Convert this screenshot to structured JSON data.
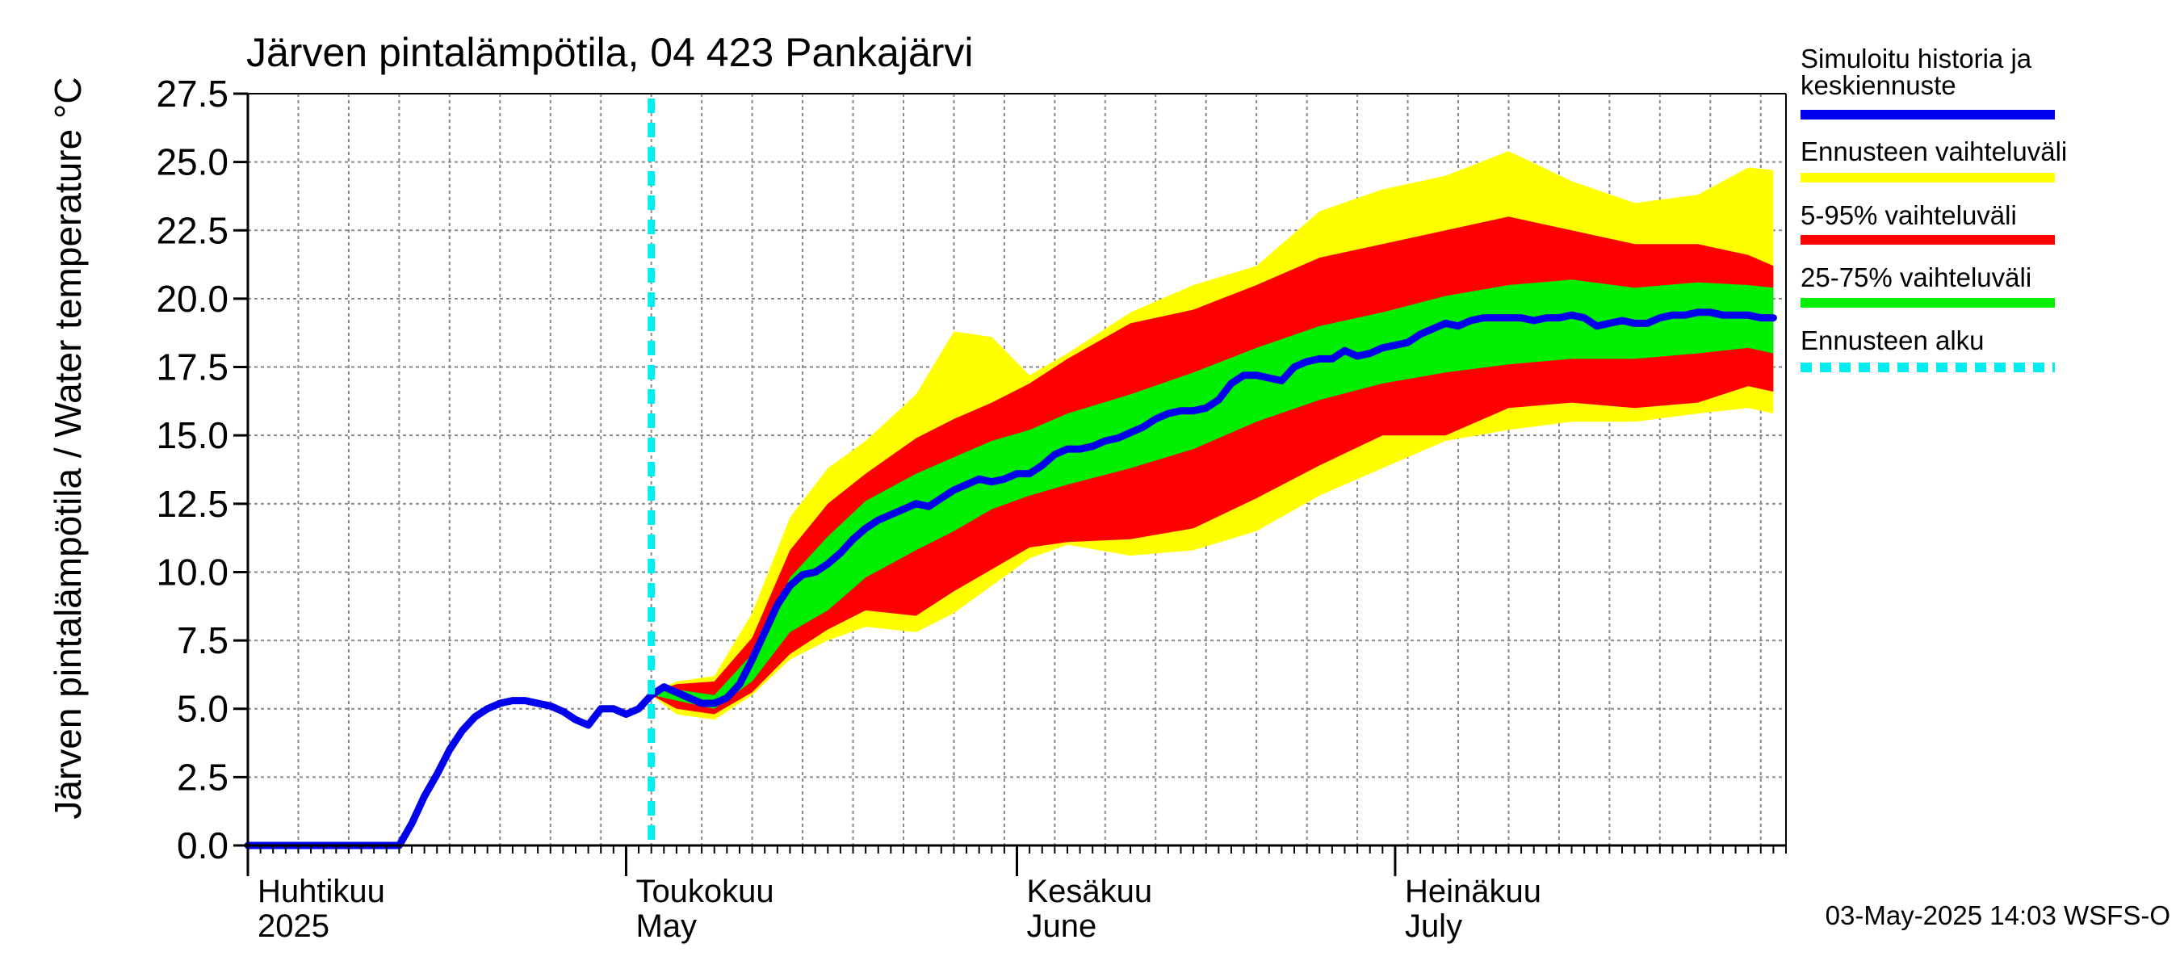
{
  "chart_data": {
    "type": "area",
    "title": "Järven pintalämpötila, 04 423 Pankajärvi",
    "ylabel": "Järven pintalämpötila / Water temperature °C",
    "xlabel": "",
    "ylim": [
      0,
      27.5
    ],
    "xlim": [
      "2025-04-01",
      "2025-08-01"
    ],
    "grid": true,
    "legend_position": "right",
    "y_ticks": [
      "0.0",
      "2.5",
      "5.0",
      "7.5",
      "10.0",
      "12.5",
      "15.0",
      "17.5",
      "20.0",
      "22.5",
      "25.0",
      "27.5"
    ],
    "month_labels": [
      {
        "fi": "Huhtikuu",
        "en": "2025",
        "date": "2025-04-01"
      },
      {
        "fi": "Toukokuu",
        "en": "May",
        "date": "2025-05-01"
      },
      {
        "fi": "Kesäkuu",
        "en": "June",
        "date": "2025-06-01"
      },
      {
        "fi": "Heinäkuu",
        "en": "July",
        "date": "2025-07-01"
      }
    ],
    "forecast_start": "2025-05-03",
    "footer": "03-May-2025 14:03 WSFS-O",
    "colors": {
      "history": "#0000ee",
      "full_range": "#ffff00",
      "p5_95": "#ff0000",
      "p25_75": "#00ee00",
      "forecast_start": "#00eeee"
    },
    "legend": [
      {
        "label_lines": [
          "Simuloitu historia ja",
          "keskiennuste"
        ],
        "color": "#0000ee",
        "style": "solid"
      },
      {
        "label_lines": [
          "Ennusteen vaihteluväli"
        ],
        "color": "#ffff00",
        "style": "solid"
      },
      {
        "label_lines": [
          "5-95% vaihteluväli"
        ],
        "color": "#ff0000",
        "style": "solid"
      },
      {
        "label_lines": [
          "25-75% vaihteluväli"
        ],
        "color": "#00ee00",
        "style": "solid"
      },
      {
        "label_lines": [
          "Ennusteen alku"
        ],
        "color": "#00eeee",
        "style": "dashed"
      }
    ],
    "series": [
      {
        "name": "Simuloitu historia ja keskiennuste",
        "points": [
          [
            "2025-04-01",
            0.0
          ],
          [
            "2025-04-05",
            0.0
          ],
          [
            "2025-04-10",
            0.0
          ],
          [
            "2025-04-13",
            0.0
          ],
          [
            "2025-04-14",
            0.8
          ],
          [
            "2025-04-15",
            1.8
          ],
          [
            "2025-04-16",
            2.6
          ],
          [
            "2025-04-17",
            3.5
          ],
          [
            "2025-04-18",
            4.2
          ],
          [
            "2025-04-19",
            4.7
          ],
          [
            "2025-04-20",
            5.0
          ],
          [
            "2025-04-21",
            5.2
          ],
          [
            "2025-04-22",
            5.3
          ],
          [
            "2025-04-23",
            5.3
          ],
          [
            "2025-04-24",
            5.2
          ],
          [
            "2025-04-25",
            5.1
          ],
          [
            "2025-04-26",
            4.9
          ],
          [
            "2025-04-27",
            4.6
          ],
          [
            "2025-04-28",
            4.4
          ],
          [
            "2025-04-29",
            5.0
          ],
          [
            "2025-04-30",
            5.0
          ],
          [
            "2025-05-01",
            4.8
          ],
          [
            "2025-05-02",
            5.0
          ],
          [
            "2025-05-03",
            5.5
          ],
          [
            "2025-05-04",
            5.8
          ],
          [
            "2025-05-05",
            5.6
          ],
          [
            "2025-05-06",
            5.4
          ],
          [
            "2025-05-07",
            5.2
          ],
          [
            "2025-05-08",
            5.2
          ],
          [
            "2025-05-09",
            5.4
          ],
          [
            "2025-05-10",
            5.9
          ],
          [
            "2025-05-11",
            6.8
          ],
          [
            "2025-05-12",
            7.8
          ],
          [
            "2025-05-13",
            8.8
          ],
          [
            "2025-05-14",
            9.5
          ],
          [
            "2025-05-15",
            9.9
          ],
          [
            "2025-05-16",
            10.0
          ],
          [
            "2025-05-17",
            10.3
          ],
          [
            "2025-05-18",
            10.7
          ],
          [
            "2025-05-19",
            11.2
          ],
          [
            "2025-05-20",
            11.6
          ],
          [
            "2025-05-21",
            11.9
          ],
          [
            "2025-05-22",
            12.1
          ],
          [
            "2025-05-23",
            12.3
          ],
          [
            "2025-05-24",
            12.5
          ],
          [
            "2025-05-25",
            12.4
          ],
          [
            "2025-05-26",
            12.7
          ],
          [
            "2025-05-27",
            13.0
          ],
          [
            "2025-05-28",
            13.2
          ],
          [
            "2025-05-29",
            13.4
          ],
          [
            "2025-05-30",
            13.3
          ],
          [
            "2025-05-31",
            13.4
          ],
          [
            "2025-06-01",
            13.6
          ],
          [
            "2025-06-02",
            13.6
          ],
          [
            "2025-06-03",
            13.9
          ],
          [
            "2025-06-04",
            14.3
          ],
          [
            "2025-06-05",
            14.5
          ],
          [
            "2025-06-06",
            14.5
          ],
          [
            "2025-06-07",
            14.6
          ],
          [
            "2025-06-08",
            14.8
          ],
          [
            "2025-06-09",
            14.9
          ],
          [
            "2025-06-10",
            15.1
          ],
          [
            "2025-06-11",
            15.3
          ],
          [
            "2025-06-12",
            15.6
          ],
          [
            "2025-06-13",
            15.8
          ],
          [
            "2025-06-14",
            15.9
          ],
          [
            "2025-06-15",
            15.9
          ],
          [
            "2025-06-16",
            16.0
          ],
          [
            "2025-06-17",
            16.3
          ],
          [
            "2025-06-18",
            16.9
          ],
          [
            "2025-06-19",
            17.2
          ],
          [
            "2025-06-20",
            17.2
          ],
          [
            "2025-06-21",
            17.1
          ],
          [
            "2025-06-22",
            17.0
          ],
          [
            "2025-06-23",
            17.5
          ],
          [
            "2025-06-24",
            17.7
          ],
          [
            "2025-06-25",
            17.8
          ],
          [
            "2025-06-26",
            17.8
          ],
          [
            "2025-06-27",
            18.1
          ],
          [
            "2025-06-28",
            17.9
          ],
          [
            "2025-06-29",
            18.0
          ],
          [
            "2025-06-30",
            18.2
          ],
          [
            "2025-07-01",
            18.3
          ],
          [
            "2025-07-02",
            18.4
          ],
          [
            "2025-07-03",
            18.7
          ],
          [
            "2025-07-04",
            18.9
          ],
          [
            "2025-07-05",
            19.1
          ],
          [
            "2025-07-06",
            19.0
          ],
          [
            "2025-07-07",
            19.2
          ],
          [
            "2025-07-08",
            19.3
          ],
          [
            "2025-07-09",
            19.3
          ],
          [
            "2025-07-10",
            19.3
          ],
          [
            "2025-07-11",
            19.3
          ],
          [
            "2025-07-12",
            19.2
          ],
          [
            "2025-07-13",
            19.3
          ],
          [
            "2025-07-14",
            19.3
          ],
          [
            "2025-07-15",
            19.4
          ],
          [
            "2025-07-16",
            19.3
          ],
          [
            "2025-07-17",
            19.0
          ],
          [
            "2025-07-18",
            19.1
          ],
          [
            "2025-07-19",
            19.2
          ],
          [
            "2025-07-20",
            19.1
          ],
          [
            "2025-07-21",
            19.1
          ],
          [
            "2025-07-22",
            19.3
          ],
          [
            "2025-07-23",
            19.4
          ],
          [
            "2025-07-24",
            19.4
          ],
          [
            "2025-07-25",
            19.5
          ],
          [
            "2025-07-26",
            19.5
          ],
          [
            "2025-07-27",
            19.4
          ],
          [
            "2025-07-28",
            19.4
          ],
          [
            "2025-07-29",
            19.4
          ],
          [
            "2025-07-30",
            19.3
          ],
          [
            "2025-07-31",
            19.3
          ]
        ]
      },
      {
        "name": "Ennusteen vaihteluväli",
        "band": [
          [
            "2025-05-03",
            5.5,
            5.6
          ],
          [
            "2025-05-05",
            4.8,
            6.0
          ],
          [
            "2025-05-08",
            4.6,
            6.2
          ],
          [
            "2025-05-11",
            5.5,
            8.5
          ],
          [
            "2025-05-14",
            6.8,
            12.0
          ],
          [
            "2025-05-17",
            7.5,
            13.8
          ],
          [
            "2025-05-20",
            8.0,
            14.8
          ],
          [
            "2025-05-24",
            7.8,
            16.5
          ],
          [
            "2025-05-27",
            8.5,
            18.8
          ],
          [
            "2025-05-30",
            9.5,
            18.6
          ],
          [
            "2025-06-02",
            10.5,
            17.2
          ],
          [
            "2025-06-05",
            11.0,
            18.0
          ],
          [
            "2025-06-10",
            10.6,
            19.5
          ],
          [
            "2025-06-15",
            10.8,
            20.5
          ],
          [
            "2025-06-20",
            11.5,
            21.2
          ],
          [
            "2025-06-25",
            12.8,
            23.2
          ],
          [
            "2025-06-30",
            13.8,
            24.0
          ],
          [
            "2025-07-05",
            14.8,
            24.5
          ],
          [
            "2025-07-10",
            15.2,
            25.4
          ],
          [
            "2025-07-15",
            15.5,
            24.3
          ],
          [
            "2025-07-20",
            15.5,
            23.5
          ],
          [
            "2025-07-25",
            15.8,
            23.8
          ],
          [
            "2025-07-29",
            16.0,
            24.8
          ],
          [
            "2025-07-31",
            15.8,
            24.7
          ]
        ]
      },
      {
        "name": "5-95% vaihteluväli",
        "band": [
          [
            "2025-05-03",
            5.5,
            5.6
          ],
          [
            "2025-05-05",
            5.0,
            5.9
          ],
          [
            "2025-05-08",
            4.8,
            6.0
          ],
          [
            "2025-05-11",
            5.6,
            7.6
          ],
          [
            "2025-05-14",
            7.0,
            10.8
          ],
          [
            "2025-05-17",
            7.9,
            12.5
          ],
          [
            "2025-05-20",
            8.6,
            13.6
          ],
          [
            "2025-05-24",
            8.4,
            14.9
          ],
          [
            "2025-05-27",
            9.3,
            15.6
          ],
          [
            "2025-05-30",
            10.1,
            16.2
          ],
          [
            "2025-06-02",
            10.9,
            16.9
          ],
          [
            "2025-06-05",
            11.1,
            17.8
          ],
          [
            "2025-06-10",
            11.2,
            19.1
          ],
          [
            "2025-06-15",
            11.6,
            19.6
          ],
          [
            "2025-06-20",
            12.7,
            20.5
          ],
          [
            "2025-06-25",
            13.9,
            21.5
          ],
          [
            "2025-06-30",
            15.0,
            22.0
          ],
          [
            "2025-07-05",
            15.0,
            22.5
          ],
          [
            "2025-07-10",
            16.0,
            23.0
          ],
          [
            "2025-07-15",
            16.2,
            22.5
          ],
          [
            "2025-07-20",
            16.0,
            22.0
          ],
          [
            "2025-07-25",
            16.2,
            22.0
          ],
          [
            "2025-07-29",
            16.8,
            21.6
          ],
          [
            "2025-07-31",
            16.6,
            21.2
          ]
        ]
      },
      {
        "name": "25-75% vaihteluväli",
        "band": [
          [
            "2025-05-03",
            5.5,
            5.6
          ],
          [
            "2025-05-05",
            5.3,
            5.7
          ],
          [
            "2025-05-08",
            5.0,
            5.5
          ],
          [
            "2025-05-11",
            6.0,
            7.0
          ],
          [
            "2025-05-14",
            7.8,
            9.8
          ],
          [
            "2025-05-17",
            8.6,
            11.3
          ],
          [
            "2025-05-20",
            9.8,
            12.6
          ],
          [
            "2025-05-24",
            10.8,
            13.6
          ],
          [
            "2025-05-27",
            11.5,
            14.2
          ],
          [
            "2025-05-30",
            12.3,
            14.8
          ],
          [
            "2025-06-02",
            12.8,
            15.2
          ],
          [
            "2025-06-05",
            13.2,
            15.8
          ],
          [
            "2025-06-10",
            13.8,
            16.5
          ],
          [
            "2025-06-15",
            14.5,
            17.3
          ],
          [
            "2025-06-20",
            15.5,
            18.2
          ],
          [
            "2025-06-25",
            16.3,
            19.0
          ],
          [
            "2025-06-30",
            16.9,
            19.5
          ],
          [
            "2025-07-05",
            17.3,
            20.1
          ],
          [
            "2025-07-10",
            17.6,
            20.5
          ],
          [
            "2025-07-15",
            17.8,
            20.7
          ],
          [
            "2025-07-20",
            17.8,
            20.4
          ],
          [
            "2025-07-25",
            18.0,
            20.6
          ],
          [
            "2025-07-29",
            18.2,
            20.5
          ],
          [
            "2025-07-31",
            18.0,
            20.4
          ]
        ]
      }
    ]
  }
}
